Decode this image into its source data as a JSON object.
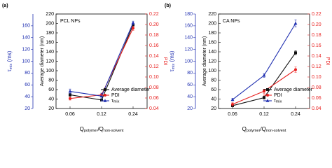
{
  "chart_data": [
    {
      "type": "line",
      "panel_label": "(a)",
      "title": "PCL NPs",
      "categories": [
        "0.06",
        "0.12",
        "0.24"
      ],
      "x_label": [
        "Q",
        "polymer",
        "/Q",
        "non-solvent"
      ],
      "ylabel": "Average diameter (nm)",
      "ylim": [
        20,
        220
      ],
      "yticks": [
        20,
        40,
        60,
        80,
        100,
        120,
        140,
        160,
        180,
        200,
        220
      ],
      "y2label": "PDI",
      "y2lim": [
        0.04,
        0.22
      ],
      "y2ticks": [
        0.04,
        0.06,
        0.08,
        {
          "value": 0.1,
          "label": "0.10"
        },
        0.12,
        0.14,
        0.16,
        0.18,
        {
          "value": 0.2,
          "label": "0.20"
        },
        0.22
      ],
      "y3label": [
        "τ",
        "mix",
        " (ms)"
      ],
      "y3lim": [
        20,
        180
      ],
      "y3ticks": [
        20,
        40,
        60,
        80,
        100,
        120,
        140,
        160
      ],
      "legend": "lower right",
      "series": [
        {
          "name": "Average diameter",
          "color": "#111111",
          "marker": "square",
          "axis": "y",
          "values": [
            49,
            38,
            197
          ],
          "errors": [
            3,
            2,
            3
          ]
        },
        {
          "name": "PDI",
          "color": "#e8201f",
          "marker": "circle",
          "axis": "y2",
          "values": [
            0.059,
            0.066,
            0.193
          ],
          "errors": [
            0.003,
            0.003,
            0.004
          ]
        },
        {
          "name": "τ",
          "name_sub": "mix",
          "color": "#1f2fb0",
          "marker": "triangle",
          "axis": "y3",
          "values": [
            49,
            41,
            165
          ],
          "errors": [
            4,
            5,
            3
          ]
        }
      ]
    },
    {
      "type": "line",
      "panel_label": "(b)",
      "title": "CA NPs",
      "categories": [
        "0.06",
        "0.12",
        "0.24"
      ],
      "x_label": [
        "Q",
        "polymer",
        "/Q",
        "non-solvent"
      ],
      "ylabel": "Average diameter (nm)",
      "ylim": [
        20,
        220
      ],
      "yticks": [
        20,
        40,
        60,
        80,
        100,
        120,
        140,
        160,
        180,
        200,
        220
      ],
      "y2label": "PDI",
      "y2lim": [
        0.04,
        0.22
      ],
      "y2ticks": [
        0.04,
        0.06,
        0.08,
        {
          "value": 0.1,
          "label": "0.10"
        },
        0.12,
        0.14,
        0.16,
        0.18,
        {
          "value": 0.2,
          "label": "0.20"
        },
        0.22
      ],
      "y3label": [
        "τ",
        "mix",
        " (ms)"
      ],
      "y3lim": [
        20,
        180
      ],
      "y3ticks": [
        20,
        40,
        60,
        80,
        100,
        120,
        140,
        160,
        180
      ],
      "legend": "lower right",
      "series": [
        {
          "name": "Average diameter",
          "color": "#111111",
          "marker": "square",
          "axis": "y",
          "values": [
            26,
            43,
            138
          ],
          "errors": [
            2,
            3,
            4
          ]
        },
        {
          "name": "PDI",
          "color": "#e8201f",
          "marker": "circle",
          "axis": "y2",
          "values": [
            0.048,
            0.073,
            0.114
          ],
          "errors": [
            0.003,
            0.004,
            0.005
          ]
        },
        {
          "name": "τ",
          "name_sub": "mix",
          "color": "#1f2fb0",
          "marker": "triangle",
          "axis": "y3",
          "values": [
            35,
            76,
            164
          ],
          "errors": [
            2,
            3,
            6
          ]
        }
      ]
    }
  ]
}
